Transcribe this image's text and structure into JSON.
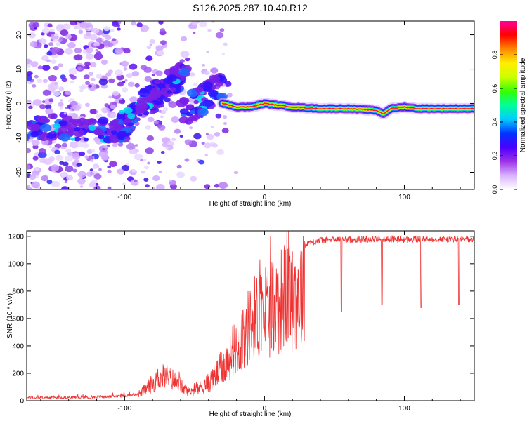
{
  "title": "S126.2025.287.10.40.R12",
  "chart_data": [
    {
      "type": "heatmap",
      "name": "spectrogram",
      "xlabel": "Height of straight line (km)",
      "ylabel": "Frequency (Hz)",
      "xlim": [
        -170,
        150
      ],
      "ylim": [
        -25,
        24
      ],
      "xticks": [
        -100,
        0,
        100
      ],
      "yticks": [
        -20,
        -10,
        0,
        10,
        20
      ],
      "tick_labels_x": [
        "-100",
        "0",
        "100"
      ],
      "tick_labels_y": [
        "-20",
        "-10",
        "0",
        "10",
        "20"
      ],
      "colorbar": {
        "label": "Normalized spectral amplitude",
        "range": [
          0,
          1
        ],
        "ticks": [
          "0.0",
          "0.2",
          "0.4",
          "0.6",
          "0.8"
        ],
        "stops": [
          "#ffffff",
          "#d9b3ff",
          "#9c32e6",
          "#4b00ff",
          "#0033ff",
          "#00ccff",
          "#00ff99",
          "#33ff00",
          "#ccff00",
          "#ffee00",
          "#ff8800",
          "#ff0000",
          "#ff0099"
        ]
      },
      "ridge": {
        "description_points_x": [
          -30,
          -20,
          -10,
          0,
          10,
          20,
          40,
          60,
          80,
          85,
          90,
          100,
          110,
          130,
          150
        ],
        "description_points_y": [
          0,
          -1,
          -1,
          0,
          -0.5,
          -1,
          -1.5,
          -1.5,
          -2,
          -3,
          -1.5,
          -1,
          -1.5,
          -1.5,
          -1.5
        ]
      }
    },
    {
      "type": "line",
      "name": "snr",
      "xlabel": "Height of straight line (km)",
      "ylabel": "SNR (10 * v/v)",
      "xlim": [
        -170,
        150
      ],
      "ylim": [
        0,
        1240
      ],
      "xticks": [
        -100,
        0,
        100
      ],
      "yticks": [
        0,
        200,
        400,
        600,
        800,
        1000,
        1200
      ],
      "tick_labels_x": [
        "-100",
        "0",
        "100"
      ],
      "tick_labels_y": [
        "0",
        "200",
        "400",
        "600",
        "800",
        "1000",
        "1200"
      ],
      "color": "#ee3333",
      "series": [
        {
          "name": "SNR",
          "x": [
            -170,
            -130,
            -110,
            -100,
            -90,
            -85,
            -80,
            -75,
            -70,
            -65,
            -60,
            -55,
            -50,
            -45,
            -40,
            -35,
            -30,
            -25,
            -20,
            -15,
            -10,
            -5,
            0,
            5,
            10,
            15,
            20,
            25,
            28,
            29,
            30,
            40,
            50,
            60,
            70,
            80,
            90,
            100,
            110,
            120,
            130,
            140,
            150
          ],
          "values": [
            20,
            25,
            30,
            35,
            50,
            80,
            130,
            170,
            180,
            150,
            110,
            70,
            70,
            100,
            130,
            180,
            250,
            320,
            400,
            480,
            560,
            620,
            650,
            690,
            720,
            760,
            780,
            790,
            800,
            1120,
            1150,
            1170,
            1175,
            1175,
            1178,
            1180,
            1180,
            1175,
            1178,
            1180,
            1178,
            1180,
            1178
          ],
          "dips": [
            {
              "x": 55,
              "value": 650
            },
            {
              "x": 84,
              "value": 700
            },
            {
              "x": 112,
              "value": 680
            },
            {
              "x": 139,
              "value": 700
            }
          ]
        }
      ]
    }
  ]
}
